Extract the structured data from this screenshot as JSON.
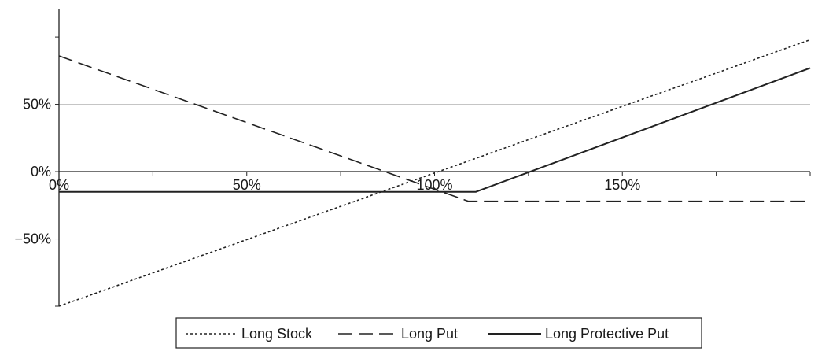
{
  "chart_data": {
    "type": "line",
    "title": "",
    "xlabel": "",
    "ylabel": "",
    "xlim": [
      0,
      2.0
    ],
    "ylim": [
      -1.0,
      1.1
    ],
    "x_ticks": [
      {
        "value": 0,
        "label": "0%"
      },
      {
        "value": 0.5,
        "label": "50%"
      },
      {
        "value": 1.0,
        "label": "100%"
      },
      {
        "value": 1.5,
        "label": "150%"
      }
    ],
    "y_ticks": [
      {
        "value": 0.5,
        "label": "50%"
      },
      {
        "value": 0,
        "label": "0%"
      },
      {
        "value": -0.5,
        "label": "−50%"
      }
    ],
    "grid": {
      "horizontal": true,
      "vertical": false
    },
    "legend_position": "bottom",
    "series": [
      {
        "name": "Long Stock",
        "line_style": "dotted",
        "points": [
          [
            0,
            -1.0
          ],
          [
            2.0,
            0.98
          ]
        ]
      },
      {
        "name": "Long Put",
        "line_style": "dashed",
        "points": [
          [
            0,
            0.86
          ],
          [
            1.09,
            -0.22
          ],
          [
            2.0,
            -0.22
          ]
        ]
      },
      {
        "name": "Long Protective Put",
        "line_style": "solid",
        "points": [
          [
            0,
            -0.15
          ],
          [
            1.11,
            -0.15
          ],
          [
            2.0,
            0.77
          ]
        ]
      }
    ]
  }
}
